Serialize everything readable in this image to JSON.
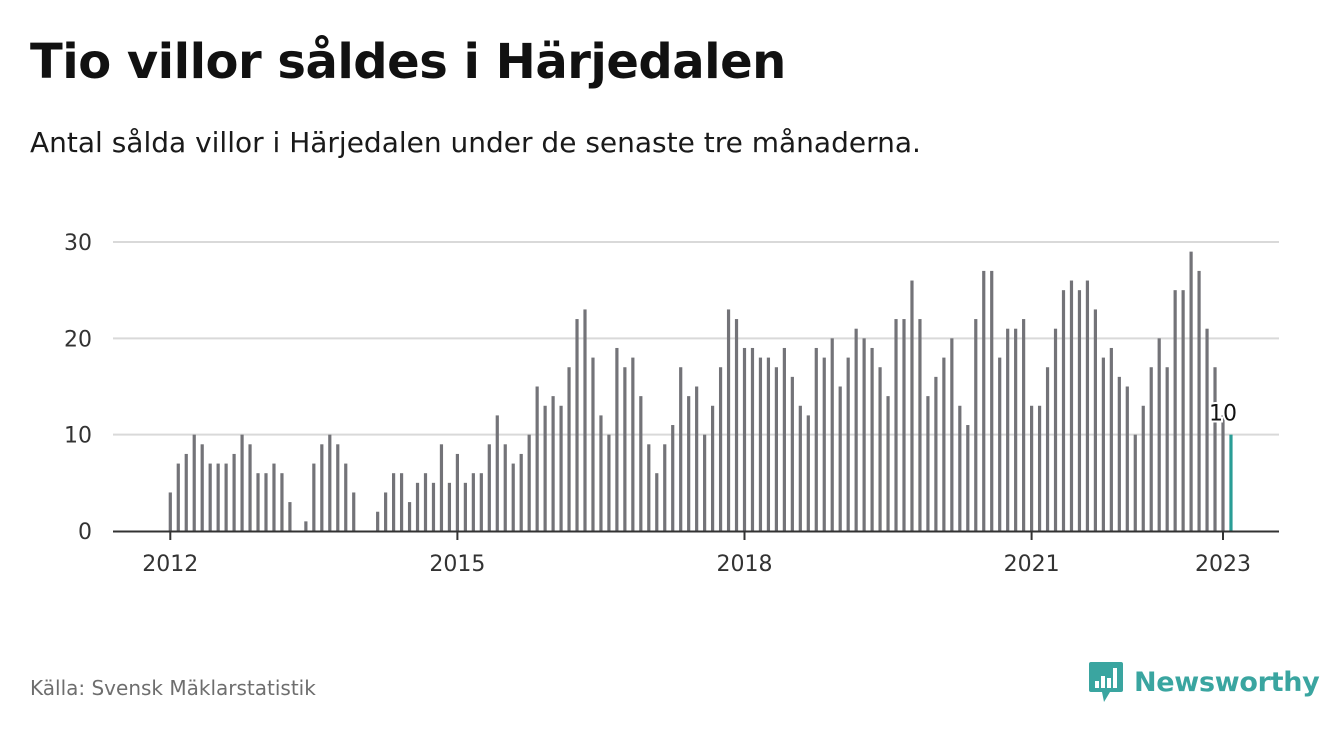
{
  "title": "Tio villor såldes i Härjedalen",
  "subtitle": "Antal sålda villor i Härjedalen under de senaste tre månaderna.",
  "source": "Källa: Svensk Mäklarstatistik",
  "brand": "Newsworthy",
  "colors": {
    "bar": "#737378",
    "highlight": "#2a9d96",
    "grid": "#d9d9d9",
    "axis": "#333333",
    "brand": "#3aa5a0"
  },
  "chart_data": {
    "type": "bar",
    "title": "Tio villor såldes i Härjedalen",
    "subtitle": "Antal sålda villor i Härjedalen under de senaste tre månaderna.",
    "xlabel": "",
    "ylabel": "",
    "ylim": [
      0,
      30
    ],
    "yticks": [
      "0",
      "10",
      "20",
      "30"
    ],
    "xticks": [
      {
        "label": "2012",
        "x": "2012-01"
      },
      {
        "label": "2015",
        "x": "2015-01"
      },
      {
        "label": "2018",
        "x": "2018-01"
      },
      {
        "label": "2021",
        "x": "2021-01"
      },
      {
        "label": "2023",
        "x": "2023-01"
      }
    ],
    "grid": true,
    "first_month": "2012-01",
    "values": [
      4,
      7,
      8,
      10,
      9,
      7,
      7,
      7,
      8,
      10,
      9,
      6,
      6,
      7,
      6,
      3,
      null,
      1,
      7,
      9,
      10,
      9,
      7,
      4,
      null,
      null,
      2,
      4,
      6,
      6,
      3,
      5,
      6,
      5,
      9,
      5,
      8,
      5,
      6,
      6,
      9,
      12,
      9,
      7,
      8,
      10,
      15,
      13,
      14,
      13,
      17,
      22,
      23,
      18,
      12,
      10,
      19,
      17,
      18,
      14,
      9,
      6,
      9,
      11,
      17,
      14,
      15,
      10,
      13,
      17,
      23,
      22,
      19,
      19,
      18,
      18,
      17,
      19,
      16,
      13,
      12,
      19,
      18,
      20,
      15,
      18,
      21,
      20,
      19,
      17,
      14,
      22,
      22,
      26,
      22,
      14,
      16,
      18,
      20,
      13,
      11,
      22,
      27,
      27,
      18,
      21,
      21,
      22,
      13,
      13,
      17,
      21,
      25,
      26,
      25,
      26,
      23,
      18,
      19,
      16,
      15,
      10,
      13,
      17,
      20,
      17,
      25,
      25,
      29,
      27,
      21,
      17,
      12,
      10
    ],
    "highlight_last": true,
    "annotation": {
      "label": "10",
      "x": "2023-01",
      "y": 10
    }
  }
}
